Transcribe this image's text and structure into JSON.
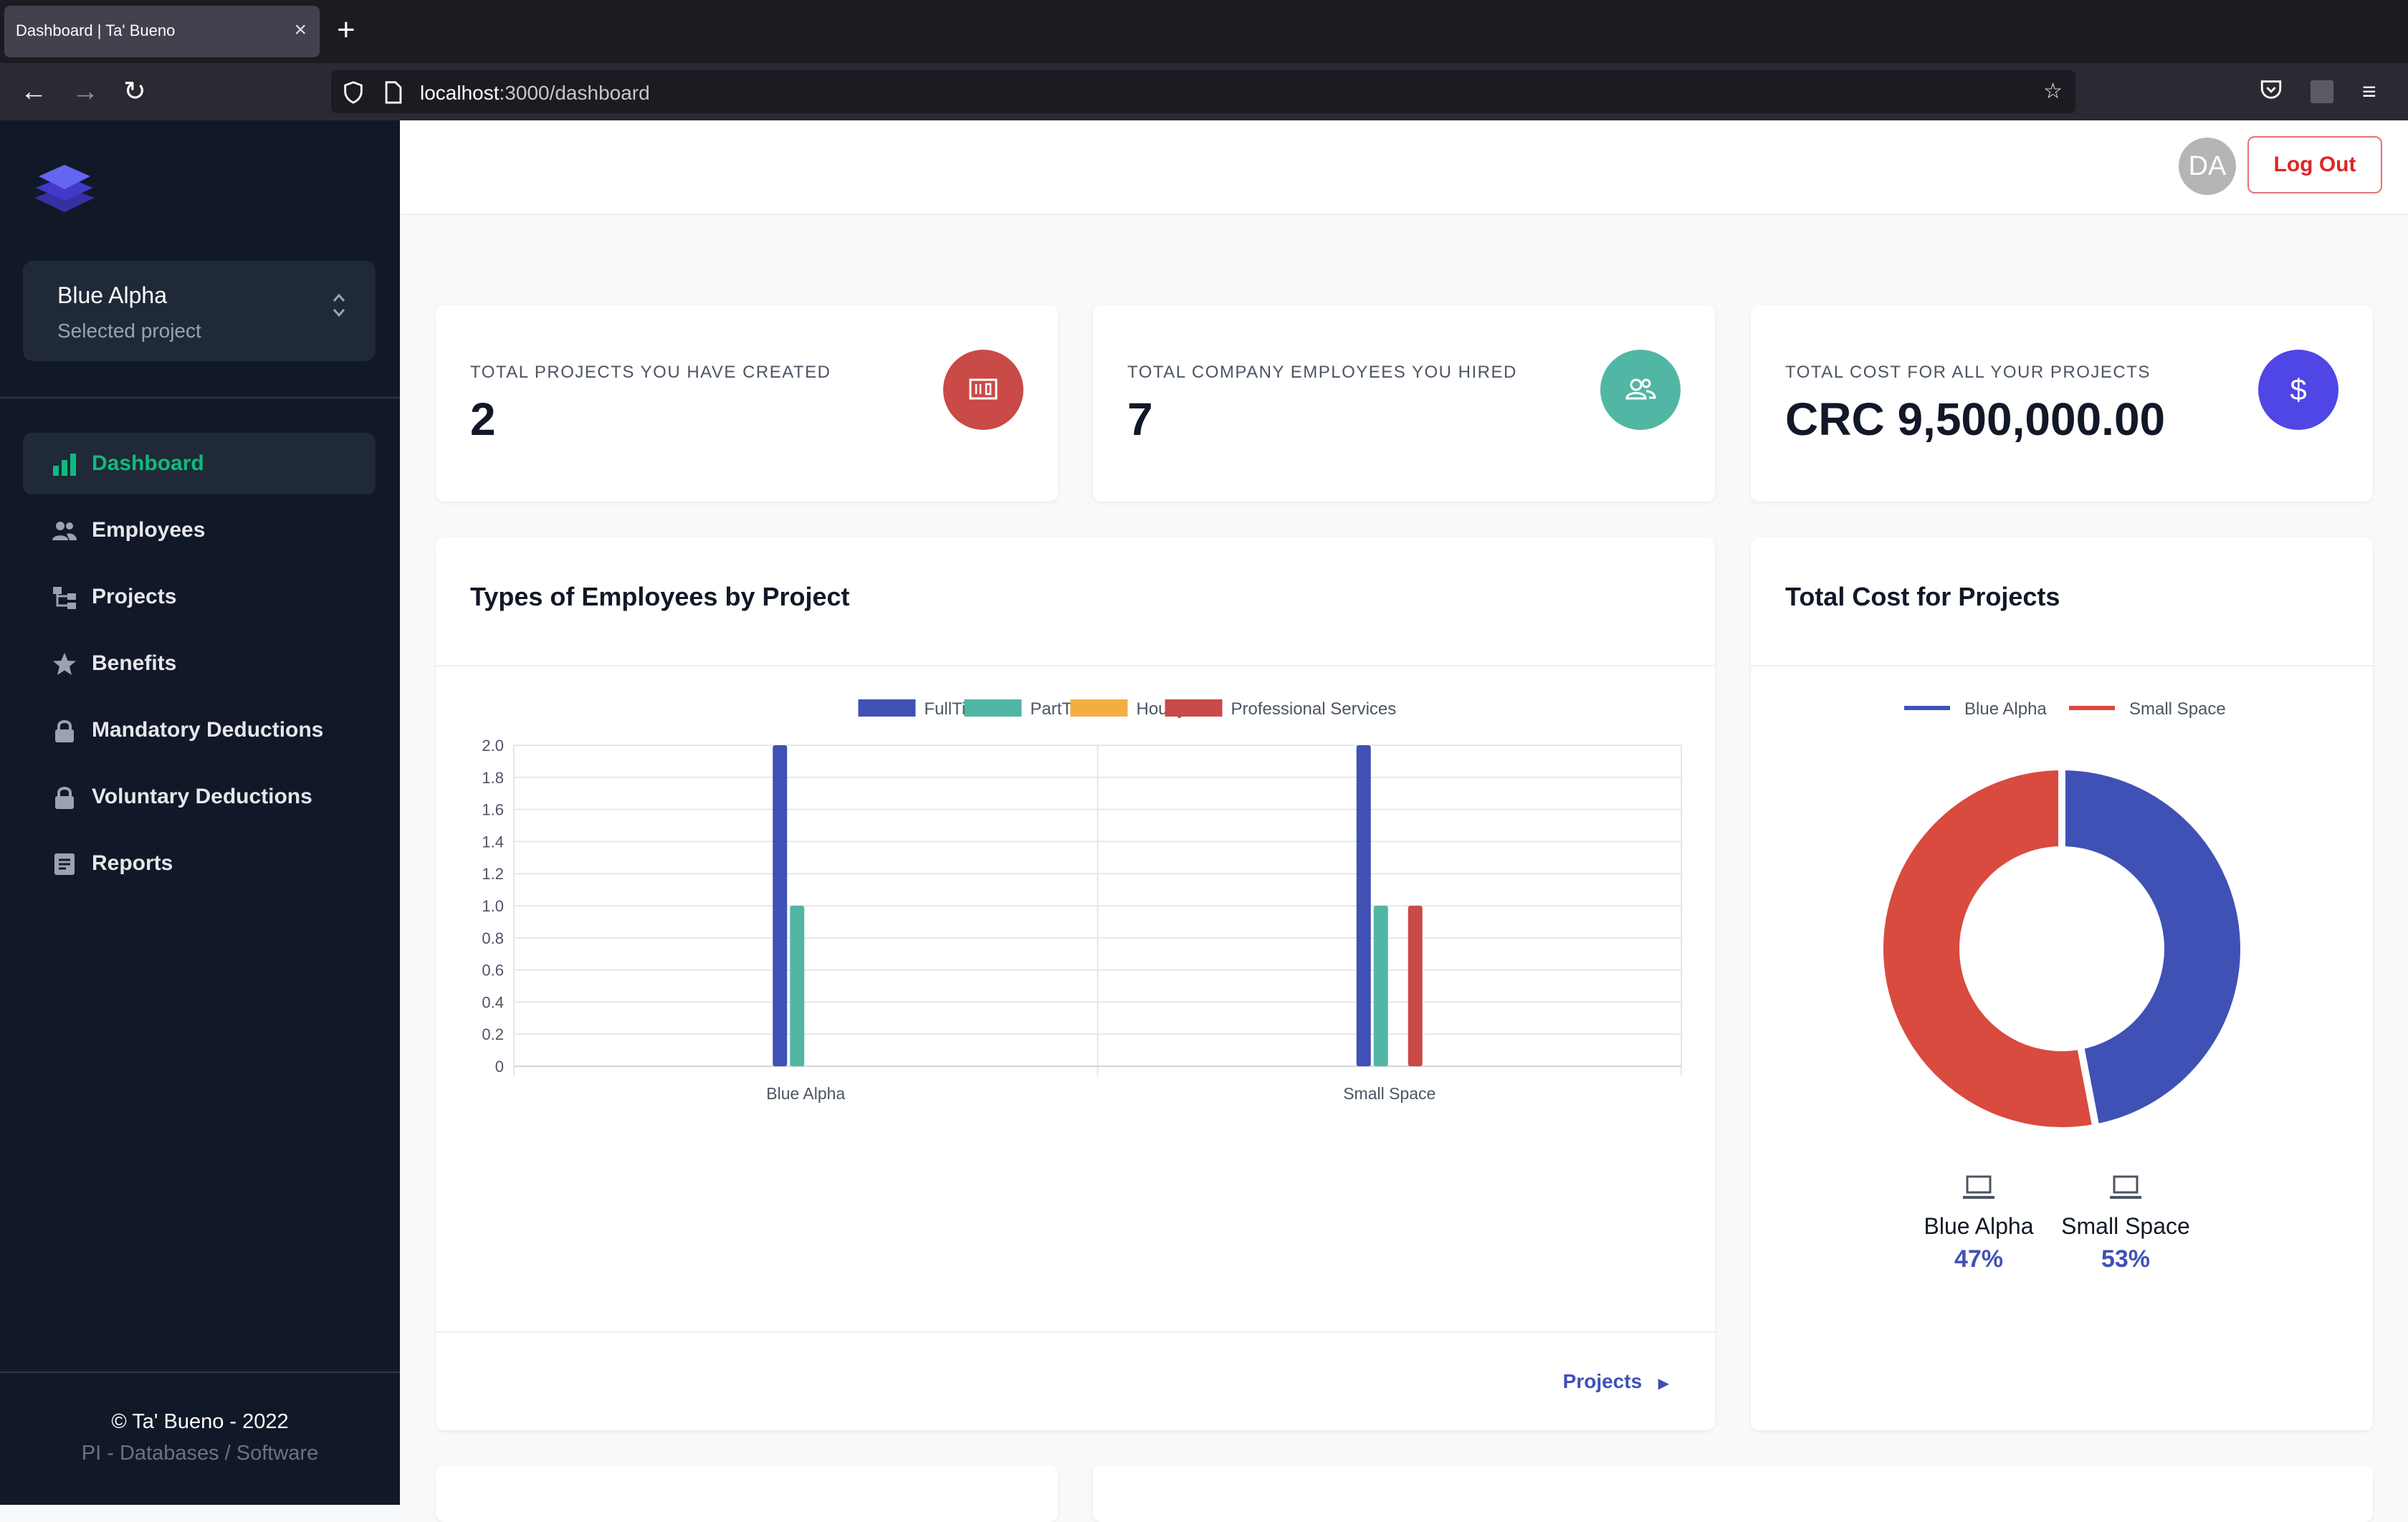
{
  "browser": {
    "tab_title": "Dashboard | Ta' Bueno",
    "url_host": "localhost",
    "url_path": ":3000/dashboard"
  },
  "sidebar": {
    "project": {
      "name": "Blue Alpha",
      "subtitle": "Selected project"
    },
    "items": [
      {
        "label": "Dashboard",
        "icon": "bar-chart-icon",
        "active": true
      },
      {
        "label": "Employees",
        "icon": "users-icon",
        "active": false
      },
      {
        "label": "Projects",
        "icon": "hierarchy-icon",
        "active": false
      },
      {
        "label": "Benefits",
        "icon": "star-icon",
        "active": false
      },
      {
        "label": "Mandatory Deductions",
        "icon": "lock-icon",
        "active": false
      },
      {
        "label": "Voluntary Deductions",
        "icon": "lock-icon",
        "active": false
      },
      {
        "label": "Reports",
        "icon": "document-icon",
        "active": false
      }
    ],
    "footer": {
      "copyright": "© Ta' Bueno - 2022",
      "subtitle": "PI - Databases / Software"
    }
  },
  "header": {
    "avatar_initials": "DA",
    "logout_label": "Log Out"
  },
  "stats": [
    {
      "label": "TOTAL PROJECTS YOU HAVE CREATED",
      "value": "2",
      "icon": "slideshow-icon",
      "color": "#c94a47"
    },
    {
      "label": "TOTAL COMPANY EMPLOYEES YOU HIRED",
      "value": "7",
      "icon": "users-icon",
      "color": "#52b6a4"
    },
    {
      "label": "TOTAL COST FOR ALL YOUR PROJECTS",
      "value": "CRC 9,500,000.00",
      "icon": "dollar-icon",
      "color": "#4f46e5"
    }
  ],
  "employees_chart": {
    "title": "Types of Employees by Project",
    "footer_link": "Projects"
  },
  "cost_chart": {
    "title": "Total Cost for Projects",
    "items": [
      {
        "name": "Blue Alpha",
        "percent": "47%",
        "icon": "laptop-icon"
      },
      {
        "name": "Small Space",
        "percent": "53%",
        "icon": "laptop-icon"
      }
    ]
  },
  "chart_data": [
    {
      "type": "bar",
      "categories": [
        "Blue Alpha",
        "Small Space"
      ],
      "series": [
        {
          "name": "FullTime",
          "values": [
            2,
            2
          ],
          "color": "#3f51b5"
        },
        {
          "name": "PartTime",
          "values": [
            1,
            1
          ],
          "color": "#52b6a4"
        },
        {
          "name": "Hourly",
          "values": [
            0,
            0
          ],
          "color": "#f5ad42"
        },
        {
          "name": "Professional Services",
          "values": [
            0,
            1
          ],
          "color": "#c94a47"
        }
      ],
      "ylim": [
        0,
        2
      ],
      "yticks": [
        "0",
        "0.2",
        "0.4",
        "0.6",
        "0.8",
        "1.0",
        "1.2",
        "1.4",
        "1.6",
        "1.8",
        "2.0"
      ],
      "grid": true,
      "legend": "top"
    },
    {
      "type": "pie",
      "donut": true,
      "labels": [
        "Blue Alpha",
        "Small Space"
      ],
      "values": [
        47,
        53
      ],
      "colors": [
        "#3f51b5",
        "#d94a3f"
      ],
      "legend": "top"
    }
  ]
}
